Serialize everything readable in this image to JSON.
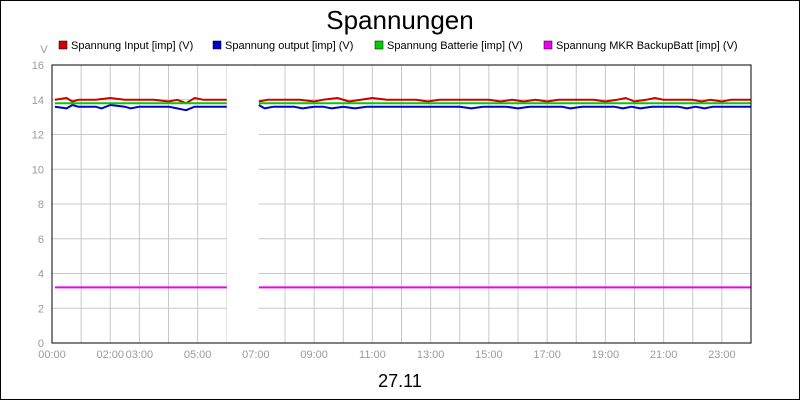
{
  "chart_data": {
    "type": "line",
    "title": "Spannungen",
    "xlabel": "27.11",
    "ylabel": "V",
    "ylim": [
      0,
      16
    ],
    "yticks": [
      0,
      2,
      4,
      6,
      8,
      10,
      12,
      14,
      16
    ],
    "xlim": [
      0,
      24
    ],
    "xticks": [
      {
        "pos": 0,
        "label": "00:00"
      },
      {
        "pos": 2,
        "label": "02:00"
      },
      {
        "pos": 3,
        "label": "03:00"
      },
      {
        "pos": 5,
        "label": "05:00"
      },
      {
        "pos": 7,
        "label": "07:00"
      },
      {
        "pos": 9,
        "label": "09:00"
      },
      {
        "pos": 11,
        "label": "11:00"
      },
      {
        "pos": 13,
        "label": "13:00"
      },
      {
        "pos": 15,
        "label": "15:00"
      },
      {
        "pos": 17,
        "label": "17:00"
      },
      {
        "pos": 19,
        "label": "19:00"
      },
      {
        "pos": 21,
        "label": "21:00"
      },
      {
        "pos": 23,
        "label": "23:00"
      }
    ],
    "gap": [
      6.0,
      7.1
    ],
    "legend_position": "top",
    "series": [
      {
        "name": "Spannung Input [imp] (V)",
        "color": "#d00000",
        "points": [
          [
            0.1,
            14.0
          ],
          [
            0.5,
            14.1
          ],
          [
            0.7,
            13.9
          ],
          [
            0.9,
            14.0
          ],
          [
            1.5,
            14.0
          ],
          [
            2.0,
            14.1
          ],
          [
            2.5,
            14.0
          ],
          [
            3.5,
            14.0
          ],
          [
            4.0,
            13.9
          ],
          [
            4.3,
            14.0
          ],
          [
            4.6,
            13.8
          ],
          [
            4.9,
            14.1
          ],
          [
            5.2,
            14.0
          ],
          [
            6.0,
            14.0
          ],
          [
            7.1,
            13.9
          ],
          [
            7.4,
            14.0
          ],
          [
            8.5,
            14.0
          ],
          [
            9.0,
            13.9
          ],
          [
            9.3,
            14.0
          ],
          [
            9.8,
            14.1
          ],
          [
            10.2,
            13.9
          ],
          [
            10.6,
            14.0
          ],
          [
            11.0,
            14.1
          ],
          [
            11.5,
            14.0
          ],
          [
            12.5,
            14.0
          ],
          [
            12.9,
            13.9
          ],
          [
            13.3,
            14.0
          ],
          [
            15.0,
            14.0
          ],
          [
            15.4,
            13.9
          ],
          [
            15.8,
            14.0
          ],
          [
            16.2,
            13.9
          ],
          [
            16.6,
            14.0
          ],
          [
            17.0,
            13.9
          ],
          [
            17.4,
            14.0
          ],
          [
            18.6,
            14.0
          ],
          [
            19.0,
            13.9
          ],
          [
            19.4,
            14.0
          ],
          [
            19.7,
            14.1
          ],
          [
            20.0,
            13.9
          ],
          [
            20.4,
            14.0
          ],
          [
            20.7,
            14.1
          ],
          [
            21.0,
            14.0
          ],
          [
            22.0,
            14.0
          ],
          [
            22.3,
            13.9
          ],
          [
            22.6,
            14.0
          ],
          [
            23.0,
            13.9
          ],
          [
            23.3,
            14.0
          ],
          [
            24.0,
            14.0
          ]
        ]
      },
      {
        "name": "Spannung output [imp] (V)",
        "color": "#0000d0",
        "points": [
          [
            0.1,
            13.6
          ],
          [
            0.5,
            13.5
          ],
          [
            0.7,
            13.7
          ],
          [
            0.9,
            13.6
          ],
          [
            1.5,
            13.6
          ],
          [
            1.7,
            13.5
          ],
          [
            2.0,
            13.7
          ],
          [
            2.5,
            13.6
          ],
          [
            2.7,
            13.5
          ],
          [
            3.0,
            13.6
          ],
          [
            4.0,
            13.6
          ],
          [
            4.3,
            13.5
          ],
          [
            4.6,
            13.4
          ],
          [
            4.9,
            13.6
          ],
          [
            6.0,
            13.6
          ],
          [
            7.1,
            13.7
          ],
          [
            7.3,
            13.5
          ],
          [
            7.6,
            13.6
          ],
          [
            8.3,
            13.6
          ],
          [
            8.6,
            13.5
          ],
          [
            9.0,
            13.6
          ],
          [
            9.3,
            13.6
          ],
          [
            9.6,
            13.5
          ],
          [
            10.0,
            13.6
          ],
          [
            10.4,
            13.5
          ],
          [
            10.8,
            13.6
          ],
          [
            14.0,
            13.6
          ],
          [
            14.4,
            13.5
          ],
          [
            14.8,
            13.6
          ],
          [
            15.6,
            13.6
          ],
          [
            16.0,
            13.5
          ],
          [
            16.4,
            13.6
          ],
          [
            17.5,
            13.6
          ],
          [
            17.8,
            13.5
          ],
          [
            18.2,
            13.6
          ],
          [
            19.3,
            13.6
          ],
          [
            19.6,
            13.5
          ],
          [
            19.9,
            13.6
          ],
          [
            20.2,
            13.5
          ],
          [
            20.6,
            13.6
          ],
          [
            21.5,
            13.6
          ],
          [
            21.8,
            13.5
          ],
          [
            22.1,
            13.6
          ],
          [
            22.4,
            13.5
          ],
          [
            22.7,
            13.6
          ],
          [
            24.0,
            13.6
          ]
        ]
      },
      {
        "name": "Spannung Batterie [imp] (V)",
        "color": "#00cc00",
        "points": [
          [
            0.1,
            13.8
          ],
          [
            6.0,
            13.8
          ],
          [
            7.1,
            13.8
          ],
          [
            24.0,
            13.8
          ]
        ]
      },
      {
        "name": "Spannung MKR BackupBatt [imp] (V)",
        "color": "#ee00ee",
        "points": [
          [
            0.1,
            3.2
          ],
          [
            6.0,
            3.2
          ],
          [
            7.1,
            3.2
          ],
          [
            24.0,
            3.2
          ]
        ]
      }
    ]
  }
}
